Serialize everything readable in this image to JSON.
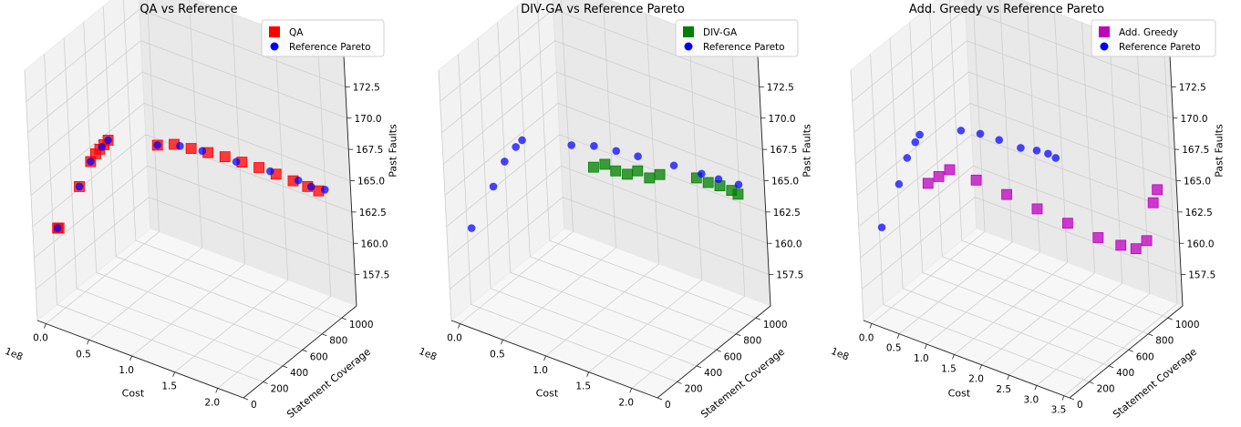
{
  "chart_data": [
    {
      "type": "scatter3d",
      "title": "QA vs Reference",
      "xlabel": "Cost",
      "ylabel": "Statement Coverage",
      "zlabel": "Past Faults",
      "x_offset_label": "1e8",
      "xlim": [
        -0.1,
        2.3
      ],
      "ylim": [
        0,
        1150
      ],
      "zlim": [
        155,
        175
      ],
      "xticks": [
        "0.0",
        "0.5",
        "1.0",
        "1.5",
        "2.0"
      ],
      "xtick_values": [
        0.0,
        0.5,
        1.0,
        1.5,
        2.0
      ],
      "yticks": [
        "0",
        "200",
        "400",
        "600",
        "800",
        "1000"
      ],
      "ytick_values": [
        0,
        200,
        400,
        600,
        800,
        1000
      ],
      "zticks": [
        "157.5",
        "160.0",
        "162.5",
        "165.0",
        "167.5",
        "170.0",
        "172.5"
      ],
      "ztick_values": [
        157.5,
        160.0,
        162.5,
        165.0,
        167.5,
        170.0,
        172.5
      ],
      "grid": true,
      "legend_position": "top-right",
      "series": [
        {
          "name": "QA",
          "marker": "square",
          "color": "#ff0000",
          "points": [
            [
              0.05,
              120,
              162
            ],
            [
              0.06,
              125,
              162
            ],
            [
              0.2,
              230,
              165
            ],
            [
              0.3,
              270,
              167
            ],
            [
              0.34,
              290,
              167.6
            ],
            [
              0.38,
              300,
              168
            ],
            [
              0.42,
              310,
              168.4
            ],
            [
              0.46,
              320,
              168.8
            ],
            [
              0.8,
              520,
              168
            ],
            [
              0.95,
              560,
              168.2
            ],
            [
              1.1,
              600,
              168
            ],
            [
              1.25,
              640,
              167.8
            ],
            [
              1.4,
              680,
              167.6
            ],
            [
              1.55,
              720,
              167.3
            ],
            [
              1.7,
              760,
              167
            ],
            [
              1.85,
              800,
              166.6
            ],
            [
              2.0,
              840,
              166.2
            ],
            [
              2.12,
              880,
              165.8
            ],
            [
              2.2,
              920,
              165.4
            ]
          ]
        },
        {
          "name": "Reference Pareto",
          "marker": "circle",
          "color": "#0000ff",
          "points": [
            [
              0.05,
              120,
              162
            ],
            [
              0.2,
              230,
              165
            ],
            [
              0.3,
              270,
              167
            ],
            [
              0.4,
              305,
              168.2
            ],
            [
              0.46,
              320,
              168.8
            ],
            [
              0.8,
              520,
              168
            ],
            [
              1.0,
              575,
              168.1
            ],
            [
              1.2,
              625,
              167.9
            ],
            [
              1.5,
              705,
              167.3
            ],
            [
              1.8,
              785,
              166.8
            ],
            [
              2.05,
              850,
              166.3
            ],
            [
              2.15,
              890,
              165.8
            ],
            [
              2.25,
              940,
              165.5
            ]
          ]
        }
      ]
    },
    {
      "type": "scatter3d",
      "title": "DIV-GA vs Reference Pareto",
      "xlabel": "Cost",
      "ylabel": "Statement Coverage",
      "zlabel": "Past Faults",
      "x_offset_label": "1e8",
      "xlim": [
        -0.1,
        2.3
      ],
      "ylim": [
        0,
        1150
      ],
      "zlim": [
        155,
        175
      ],
      "xticks": [
        "0.0",
        "0.5",
        "1.0",
        "1.5",
        "2.0"
      ],
      "xtick_values": [
        0.0,
        0.5,
        1.0,
        1.5,
        2.0
      ],
      "yticks": [
        "0",
        "200",
        "400",
        "600",
        "800",
        "1000"
      ],
      "ytick_values": [
        0,
        200,
        400,
        600,
        800,
        1000
      ],
      "zticks": [
        "157.5",
        "160.0",
        "162.5",
        "165.0",
        "167.5",
        "170.0",
        "172.5"
      ],
      "ztick_values": [
        157.5,
        160.0,
        162.5,
        165.0,
        167.5,
        170.0,
        172.5
      ],
      "grid": true,
      "legend_position": "top-right",
      "series": [
        {
          "name": "DIV-GA",
          "marker": "square",
          "color": "#008000",
          "points": [
            [
              1.0,
              560,
              166.5
            ],
            [
              1.1,
              590,
              166.8
            ],
            [
              1.2,
              610,
              166.4
            ],
            [
              1.3,
              640,
              166.2
            ],
            [
              1.4,
              660,
              166.6
            ],
            [
              1.5,
              690,
              166.1
            ],
            [
              1.6,
              710,
              166.5
            ],
            [
              1.9,
              820,
              166.3
            ],
            [
              2.0,
              850,
              166
            ],
            [
              2.1,
              880,
              165.8
            ],
            [
              2.2,
              910,
              165.5
            ],
            [
              2.25,
              930,
              165.2
            ]
          ]
        },
        {
          "name": "Reference Pareto",
          "marker": "circle",
          "color": "#0000ff",
          "points": [
            [
              0.05,
              120,
              162
            ],
            [
              0.2,
              230,
              165
            ],
            [
              0.3,
              270,
              167
            ],
            [
              0.4,
              305,
              168.2
            ],
            [
              0.46,
              320,
              168.8
            ],
            [
              0.8,
              520,
              168
            ],
            [
              1.0,
              575,
              168.1
            ],
            [
              1.2,
              625,
              167.9
            ],
            [
              1.4,
              670,
              167.7
            ],
            [
              1.7,
              770,
              167.1
            ],
            [
              1.95,
              830,
              166.7
            ],
            [
              2.1,
              870,
              166.4
            ],
            [
              2.25,
              940,
              165.9
            ]
          ]
        }
      ]
    },
    {
      "type": "scatter3d",
      "title": "Add. Greedy vs Reference Pareto",
      "xlabel": "Cost",
      "ylabel": "Statement Coverage",
      "zlabel": "Past Faults",
      "x_offset_label": "1e8",
      "xlim": [
        -0.15,
        3.6
      ],
      "ylim": [
        0,
        1150
      ],
      "zlim": [
        155,
        175
      ],
      "xticks": [
        "0.0",
        "0.5",
        "1.0",
        "1.5",
        "2.0",
        "2.5",
        "3.0",
        "3.5"
      ],
      "xtick_values": [
        0.0,
        0.5,
        1.0,
        1.5,
        2.0,
        2.5,
        3.0,
        3.5
      ],
      "yticks": [
        "0",
        "200",
        "400",
        "600",
        "800",
        "1000"
      ],
      "ytick_values": [
        0,
        200,
        400,
        600,
        800,
        1000
      ],
      "zticks": [
        "157.5",
        "160.0",
        "162.5",
        "165.0",
        "167.5",
        "170.0",
        "172.5"
      ],
      "ztick_values": [
        157.5,
        160.0,
        162.5,
        165.0,
        167.5,
        170.0,
        172.5
      ],
      "grid": true,
      "legend_position": "top-right",
      "series": [
        {
          "name": "Add. Greedy",
          "marker": "square",
          "color": "#bf00bf",
          "points": [
            [
              0.55,
              330,
              165
            ],
            [
              0.7,
              360,
              165.6
            ],
            [
              0.85,
              390,
              166.2
            ],
            [
              1.2,
              460,
              165.5
            ],
            [
              1.6,
              540,
              164.5
            ],
            [
              2.0,
              620,
              163.5
            ],
            [
              2.4,
              700,
              162.5
            ],
            [
              2.8,
              780,
              161.5
            ],
            [
              3.1,
              840,
              161
            ],
            [
              3.3,
              880,
              160.8
            ],
            [
              3.45,
              910,
              161.5
            ],
            [
              3.55,
              940,
              164.5
            ],
            [
              3.6,
              960,
              165.5
            ]
          ]
        },
        {
          "name": "Reference Pareto",
          "marker": "circle",
          "color": "#0000ff",
          "points": [
            [
              0.05,
              120,
              162
            ],
            [
              0.2,
              230,
              165
            ],
            [
              0.3,
              270,
              167
            ],
            [
              0.4,
              305,
              168.2
            ],
            [
              0.46,
              320,
              168.8
            ],
            [
              0.85,
              520,
              168.5
            ],
            [
              1.1,
              575,
              168.3
            ],
            [
              1.35,
              625,
              167.9
            ],
            [
              1.6,
              700,
              167.2
            ],
            [
              1.8,
              750,
              167
            ],
            [
              1.95,
              780,
              166.8
            ],
            [
              2.05,
              800,
              166.5
            ]
          ]
        }
      ]
    }
  ]
}
